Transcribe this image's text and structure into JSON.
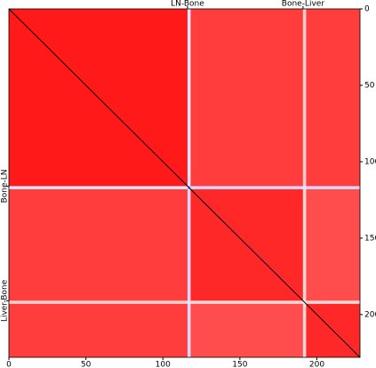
{
  "chart_data": {
    "type": "heatmap",
    "x_edges": [
      0,
      116,
      118,
      191,
      193,
      228
    ],
    "y_edges": [
      0,
      116,
      118,
      191,
      193,
      228
    ],
    "values": [
      [
        0.95,
        0.45,
        0.88,
        0.6,
        0.88
      ],
      [
        0.45,
        0.3,
        0.42,
        0.45,
        0.42
      ],
      [
        0.88,
        0.42,
        0.92,
        0.58,
        0.85
      ],
      [
        0.6,
        0.45,
        0.58,
        0.55,
        0.58
      ],
      [
        0.88,
        0.42,
        0.85,
        0.58,
        0.92
      ]
    ],
    "vlim": [
      0,
      1
    ],
    "diagonal_color": "#000000",
    "xlim": [
      0,
      228
    ],
    "ylim": [
      228,
      0
    ],
    "xticks": [
      0,
      50,
      100,
      150,
      200
    ],
    "yticks": [
      0,
      50,
      100,
      150,
      200
    ],
    "top_ticks": [
      {
        "value": 116,
        "label": "LN-Bone"
      },
      {
        "value": 191,
        "label": "Bone-Liver"
      }
    ],
    "left_ticks": [
      {
        "value": 116,
        "label": "Bone-LN"
      },
      {
        "value": 191,
        "label": "Liver-Bone"
      }
    ]
  }
}
